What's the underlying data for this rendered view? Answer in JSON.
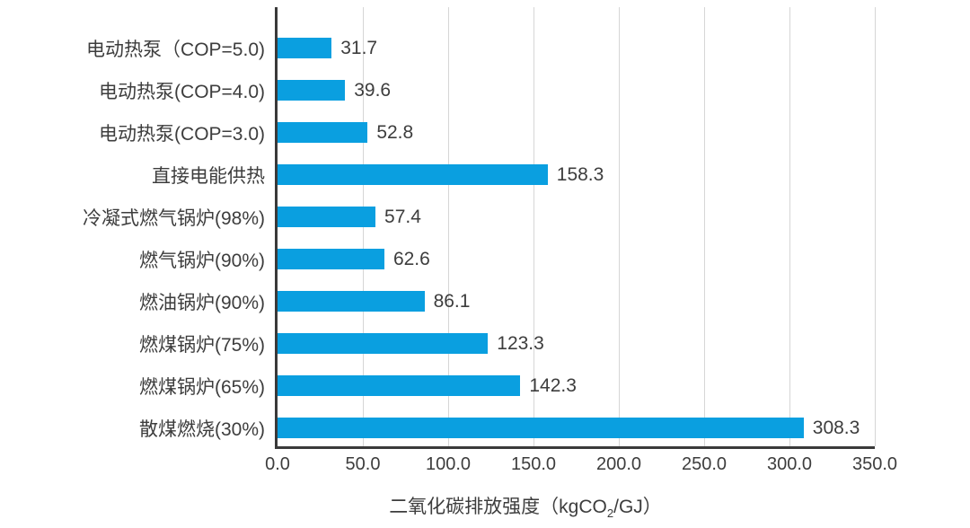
{
  "chart_data": {
    "type": "bar",
    "orientation": "horizontal",
    "title": "",
    "categories": [
      "电动热泵（COP=5.0)",
      "电动热泵(COP=4.0)",
      "电动热泵(COP=3.0)",
      "直接电能供热",
      "冷凝式燃气锅炉(98%)",
      "燃气锅炉(90%)",
      "燃油锅炉(90%)",
      "燃煤锅炉(75%)",
      "燃煤锅炉(65%)",
      "散煤燃烧(30%)"
    ],
    "values": [
      31.7,
      39.6,
      52.8,
      158.3,
      57.4,
      62.6,
      86.1,
      123.3,
      142.3,
      308.3
    ],
    "value_labels": [
      "31.7",
      "39.6",
      "52.8",
      "158.3",
      "57.4",
      "62.6",
      "86.1",
      "123.3",
      "142.3",
      "308.3"
    ],
    "xlabel_text": "二氧化碳排放强度（kgCO2/GJ）",
    "xlabel_parts": {
      "prefix": "二氧化碳排放强度（kgCO",
      "sub": "2",
      "suffix": "/GJ）"
    },
    "xticks": [
      0,
      50,
      100,
      150,
      200,
      250,
      300,
      350
    ],
    "xtick_labels": [
      "0.0",
      "50.0",
      "100.0",
      "150.0",
      "200.0",
      "250.0",
      "300.0",
      "350.0"
    ],
    "xlim": [
      0,
      350
    ],
    "grid": "vertical-every-50",
    "legend_position": "none",
    "bar_color": "#0a9fe0",
    "text_color": "#3d3d3d",
    "grid_color": "#d6d6d6",
    "axis_color": "#3a3a3a"
  }
}
